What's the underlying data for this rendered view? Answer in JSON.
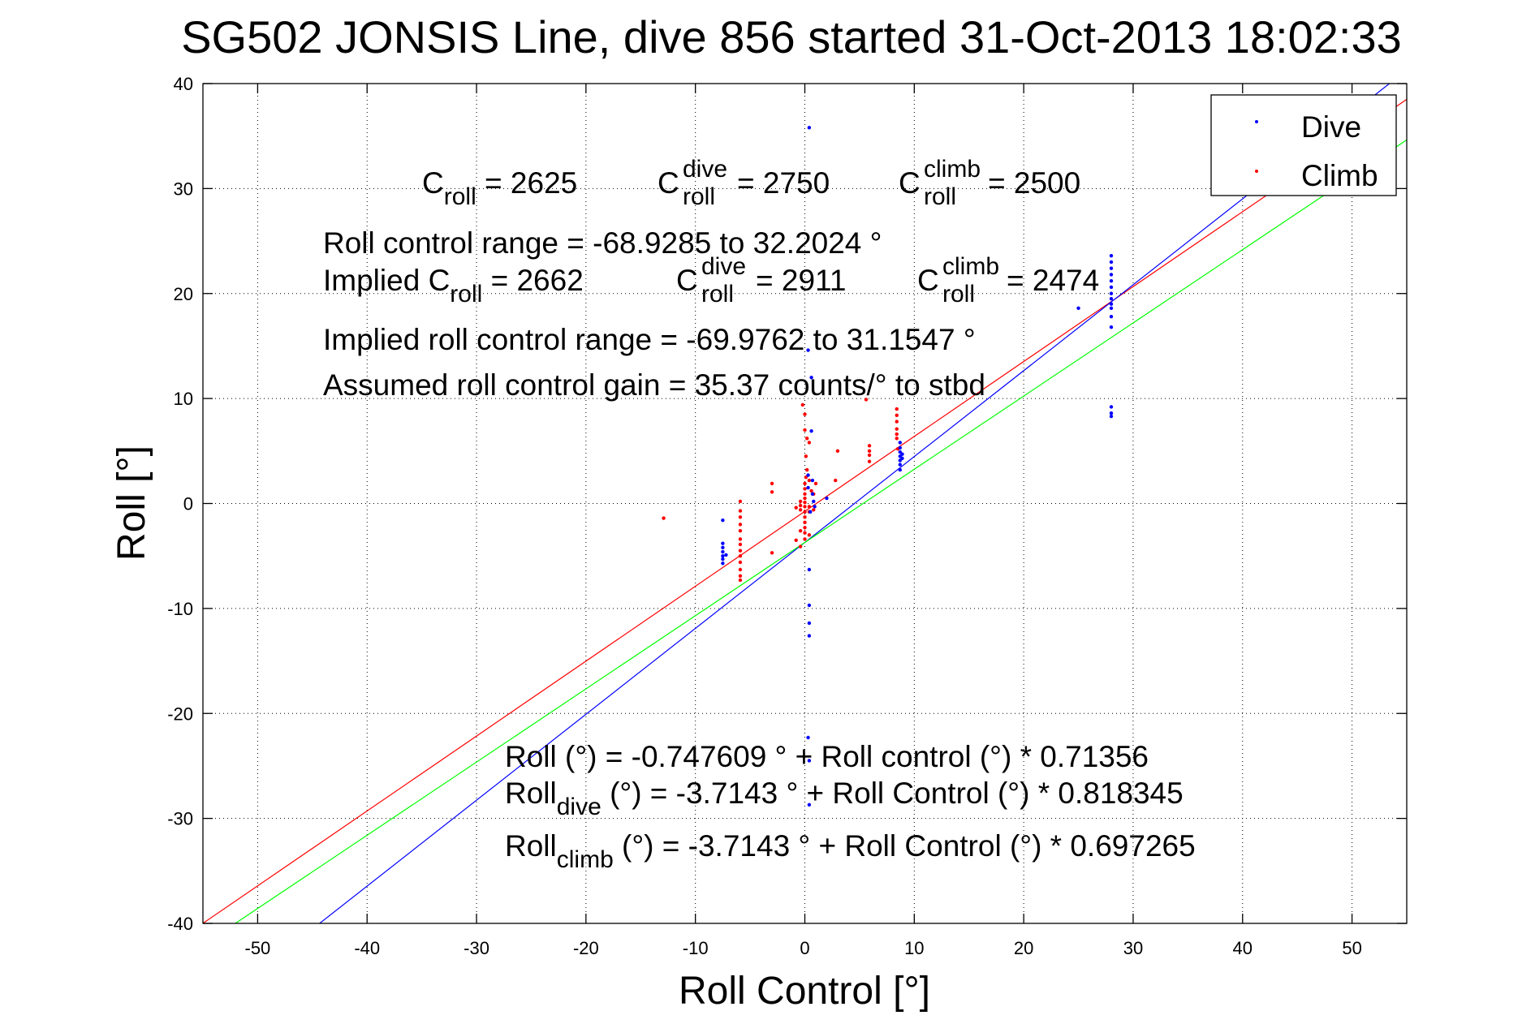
{
  "chart_data": {
    "type": "scatter",
    "title": "SG502 JONSIS Line, dive 856 started 31-Oct-2013 18:02:33",
    "xlabel": "Roll Control [°]",
    "ylabel": "Roll [°]",
    "xlim": [
      -55,
      55
    ],
    "ylim": [
      -40,
      40
    ],
    "x_ticks": [
      -50,
      -40,
      -30,
      -20,
      -10,
      0,
      10,
      20,
      30,
      40,
      50
    ],
    "y_ticks": [
      -40,
      -30,
      -20,
      -10,
      0,
      10,
      20,
      30,
      40
    ],
    "grid": true,
    "legend": {
      "position": "top-right",
      "entries": [
        {
          "name": "Dive",
          "color": "#0000ff"
        },
        {
          "name": "Climb",
          "color": "#ff0000"
        }
      ]
    },
    "series": [
      {
        "name": "Dive",
        "color": "#0000ff",
        "marker": "dot",
        "points": [
          [
            0.4,
            35.8
          ],
          [
            28.0,
            23.6
          ],
          [
            28.0,
            23.0
          ],
          [
            28.0,
            22.4
          ],
          [
            28.0,
            21.8
          ],
          [
            28.0,
            21.2
          ],
          [
            28.0,
            20.6
          ],
          [
            28.0,
            20.0
          ],
          [
            28.0,
            19.5
          ],
          [
            28.0,
            19.0
          ],
          [
            28.0,
            18.6
          ],
          [
            28.0,
            17.8
          ],
          [
            28.0,
            16.8
          ],
          [
            25.0,
            18.6
          ],
          [
            28.0,
            9.2
          ],
          [
            28.0,
            8.6
          ],
          [
            28.0,
            8.3
          ],
          [
            8.7,
            5.8
          ],
          [
            8.7,
            5.3
          ],
          [
            8.7,
            4.9
          ],
          [
            8.7,
            4.5
          ],
          [
            8.7,
            4.1
          ],
          [
            8.7,
            3.7
          ],
          [
            8.7,
            3.2
          ],
          [
            8.9,
            4.7
          ],
          [
            8.9,
            4.3
          ],
          [
            0.3,
            14.6
          ],
          [
            0.6,
            12.0
          ],
          [
            0.6,
            6.9
          ],
          [
            0.7,
            2.2
          ],
          [
            0.7,
            0.9
          ],
          [
            0.8,
            0.2
          ],
          [
            0.9,
            -0.3
          ],
          [
            0.5,
            -0.8
          ],
          [
            0.3,
            2.7
          ],
          [
            0.3,
            1.5
          ],
          [
            2.0,
            0.5
          ],
          [
            0.4,
            -6.3
          ],
          [
            0.4,
            -9.7
          ],
          [
            0.4,
            -11.4
          ],
          [
            0.4,
            -12.6
          ],
          [
            0.3,
            -22.3
          ],
          [
            0.4,
            -24.5
          ],
          [
            0.4,
            -28.7
          ],
          [
            -7.5,
            -1.6
          ],
          [
            -7.5,
            -3.8
          ],
          [
            -7.5,
            -4.2
          ],
          [
            -7.5,
            -4.6
          ],
          [
            -7.5,
            -5.0
          ],
          [
            -7.5,
            -5.3
          ],
          [
            -7.5,
            -5.7
          ],
          [
            -7.2,
            -4.9
          ]
        ]
      },
      {
        "name": "Climb",
        "color": "#ff0000",
        "marker": "dot",
        "points": [
          [
            -12.9,
            -1.4
          ],
          [
            -5.9,
            0.2
          ],
          [
            -5.9,
            -0.7
          ],
          [
            -5.9,
            -1.3
          ],
          [
            -5.9,
            -2.0
          ],
          [
            -5.9,
            -2.6
          ],
          [
            -5.9,
            -3.4
          ],
          [
            -5.9,
            -3.9
          ],
          [
            -5.9,
            -4.5
          ],
          [
            -5.9,
            -5.0
          ],
          [
            -5.9,
            -5.6
          ],
          [
            -5.9,
            -6.3
          ],
          [
            -5.9,
            -6.9
          ],
          [
            -5.9,
            -7.3
          ],
          [
            -3.0,
            1.9
          ],
          [
            -3.0,
            1.1
          ],
          [
            -3.0,
            -4.7
          ],
          [
            -0.2,
            9.4
          ],
          [
            0.0,
            8.5
          ],
          [
            0.0,
            7.0
          ],
          [
            0.2,
            6.2
          ],
          [
            0.1,
            4.5
          ],
          [
            0.2,
            3.2
          ],
          [
            0.1,
            2.5
          ],
          [
            0.0,
            1.9
          ],
          [
            0.0,
            1.4
          ],
          [
            0.0,
            0.9
          ],
          [
            0.0,
            0.5
          ],
          [
            0.0,
            0.1
          ],
          [
            0.0,
            -0.3
          ],
          [
            0.0,
            -0.8
          ],
          [
            0.0,
            -1.3
          ],
          [
            0.0,
            -1.8
          ],
          [
            0.0,
            -2.3
          ],
          [
            0.0,
            -2.8
          ],
          [
            0.0,
            -3.4
          ],
          [
            -0.4,
            -0.2
          ],
          [
            -0.4,
            0.2
          ],
          [
            -0.4,
            -0.6
          ],
          [
            -0.4,
            -2.6
          ],
          [
            -0.4,
            -4.1
          ],
          [
            0.4,
            2.2
          ],
          [
            0.4,
            -0.3
          ],
          [
            0.4,
            -0.8
          ],
          [
            0.4,
            -3.0
          ],
          [
            0.4,
            5.8
          ],
          [
            0.6,
            1.2
          ],
          [
            -0.8,
            -0.4
          ],
          [
            -0.8,
            -3.5
          ],
          [
            0.8,
            -0.6
          ],
          [
            0.8,
            0.9
          ],
          [
            1.0,
            1.9
          ],
          [
            2.8,
            2.2
          ],
          [
            3.0,
            5.0
          ],
          [
            5.9,
            5.5
          ],
          [
            5.9,
            5.0
          ],
          [
            5.9,
            4.6
          ],
          [
            5.9,
            4.0
          ],
          [
            5.6,
            9.9
          ],
          [
            8.4,
            9.0
          ],
          [
            8.4,
            8.4
          ],
          [
            8.4,
            7.8
          ],
          [
            8.4,
            7.1
          ],
          [
            8.4,
            6.6
          ],
          [
            8.4,
            6.2
          ],
          [
            8.5,
            5.2
          ]
        ]
      }
    ],
    "fit_lines": [
      {
        "name": "Roll",
        "color": "#ff0000",
        "intercept": -0.747609,
        "slope": 0.71356
      },
      {
        "name": "Roll dive",
        "color": "#0000ff",
        "intercept": -3.7143,
        "slope": 0.818345
      },
      {
        "name": "Roll climb",
        "color": "#00ff00",
        "intercept": -3.7143,
        "slope": 0.697265
      }
    ],
    "annotations": {
      "crolls": [
        {
          "base": "C",
          "sub": "roll",
          "sup": "",
          "rest": " = 2625"
        },
        {
          "base": "C",
          "sub": "roll",
          "sup": "dive",
          "rest": " = 2750"
        },
        {
          "base": "C",
          "sub": "roll",
          "sup": "climb",
          "rest": " = 2500"
        }
      ],
      "range_text": "Roll control range = -68.9285 to 32.2024 °",
      "implied_prefix": "Implied ",
      "implied": [
        {
          "base": "C",
          "sub": "roll",
          "sup": "",
          "rest": " = 2662"
        },
        {
          "base": "C",
          "sub": "roll",
          "sup": "dive",
          "rest": " = 2911"
        },
        {
          "base": "C",
          "sub": "roll",
          "sup": "climb",
          "rest": " = 2474"
        }
      ],
      "implied_range_text": "Implied roll control range = -69.9762 to 31.1547 °",
      "gain_text": "Assumed roll control gain = 35.37 counts/° to stbd",
      "eq1": "Roll (°) = -0.747609 ° + Roll control (°) * 0.71356",
      "eq2_base": "Roll",
      "eq2_sub": "dive",
      "eq2_rest": " (°) = -3.7143 ° + Roll Control (°) * 0.818345",
      "eq3_base": "Roll",
      "eq3_sub": "climb",
      "eq3_rest": " (°) = -3.7143 ° + Roll Control (°) * 0.697265"
    }
  }
}
